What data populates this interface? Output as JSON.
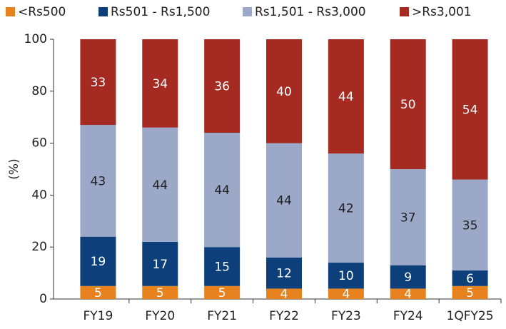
{
  "chart_data": {
    "type": "stacked_bar",
    "categories": [
      "FY19",
      "FY20",
      "FY21",
      "FY22",
      "FY23",
      "FY24",
      "1QFY25"
    ],
    "series": [
      {
        "name": "<Rs500",
        "color": "#e8821e",
        "label_color": "#ffffff",
        "values": [
          5,
          5,
          5,
          4,
          4,
          4,
          5
        ]
      },
      {
        "name": "Rs501 - Rs1,500",
        "color": "#0d3f7a",
        "label_color": "#ffffff",
        "values": [
          19,
          17,
          15,
          12,
          10,
          9,
          6
        ]
      },
      {
        "name": "Rs1,501 - Rs3,000",
        "color": "#9ba8c8",
        "label_color": "#222222",
        "values": [
          43,
          44,
          44,
          44,
          42,
          37,
          35
        ]
      },
      {
        "name": ">Rs3,001",
        "color": "#a52a22",
        "label_color": "#ffffff",
        "values": [
          33,
          34,
          36,
          40,
          44,
          50,
          54
        ]
      }
    ],
    "y_label": "(%)",
    "ylim": [
      0,
      100
    ],
    "yticks": [
      0,
      20,
      40,
      60,
      80,
      100
    ],
    "legend": "top"
  }
}
